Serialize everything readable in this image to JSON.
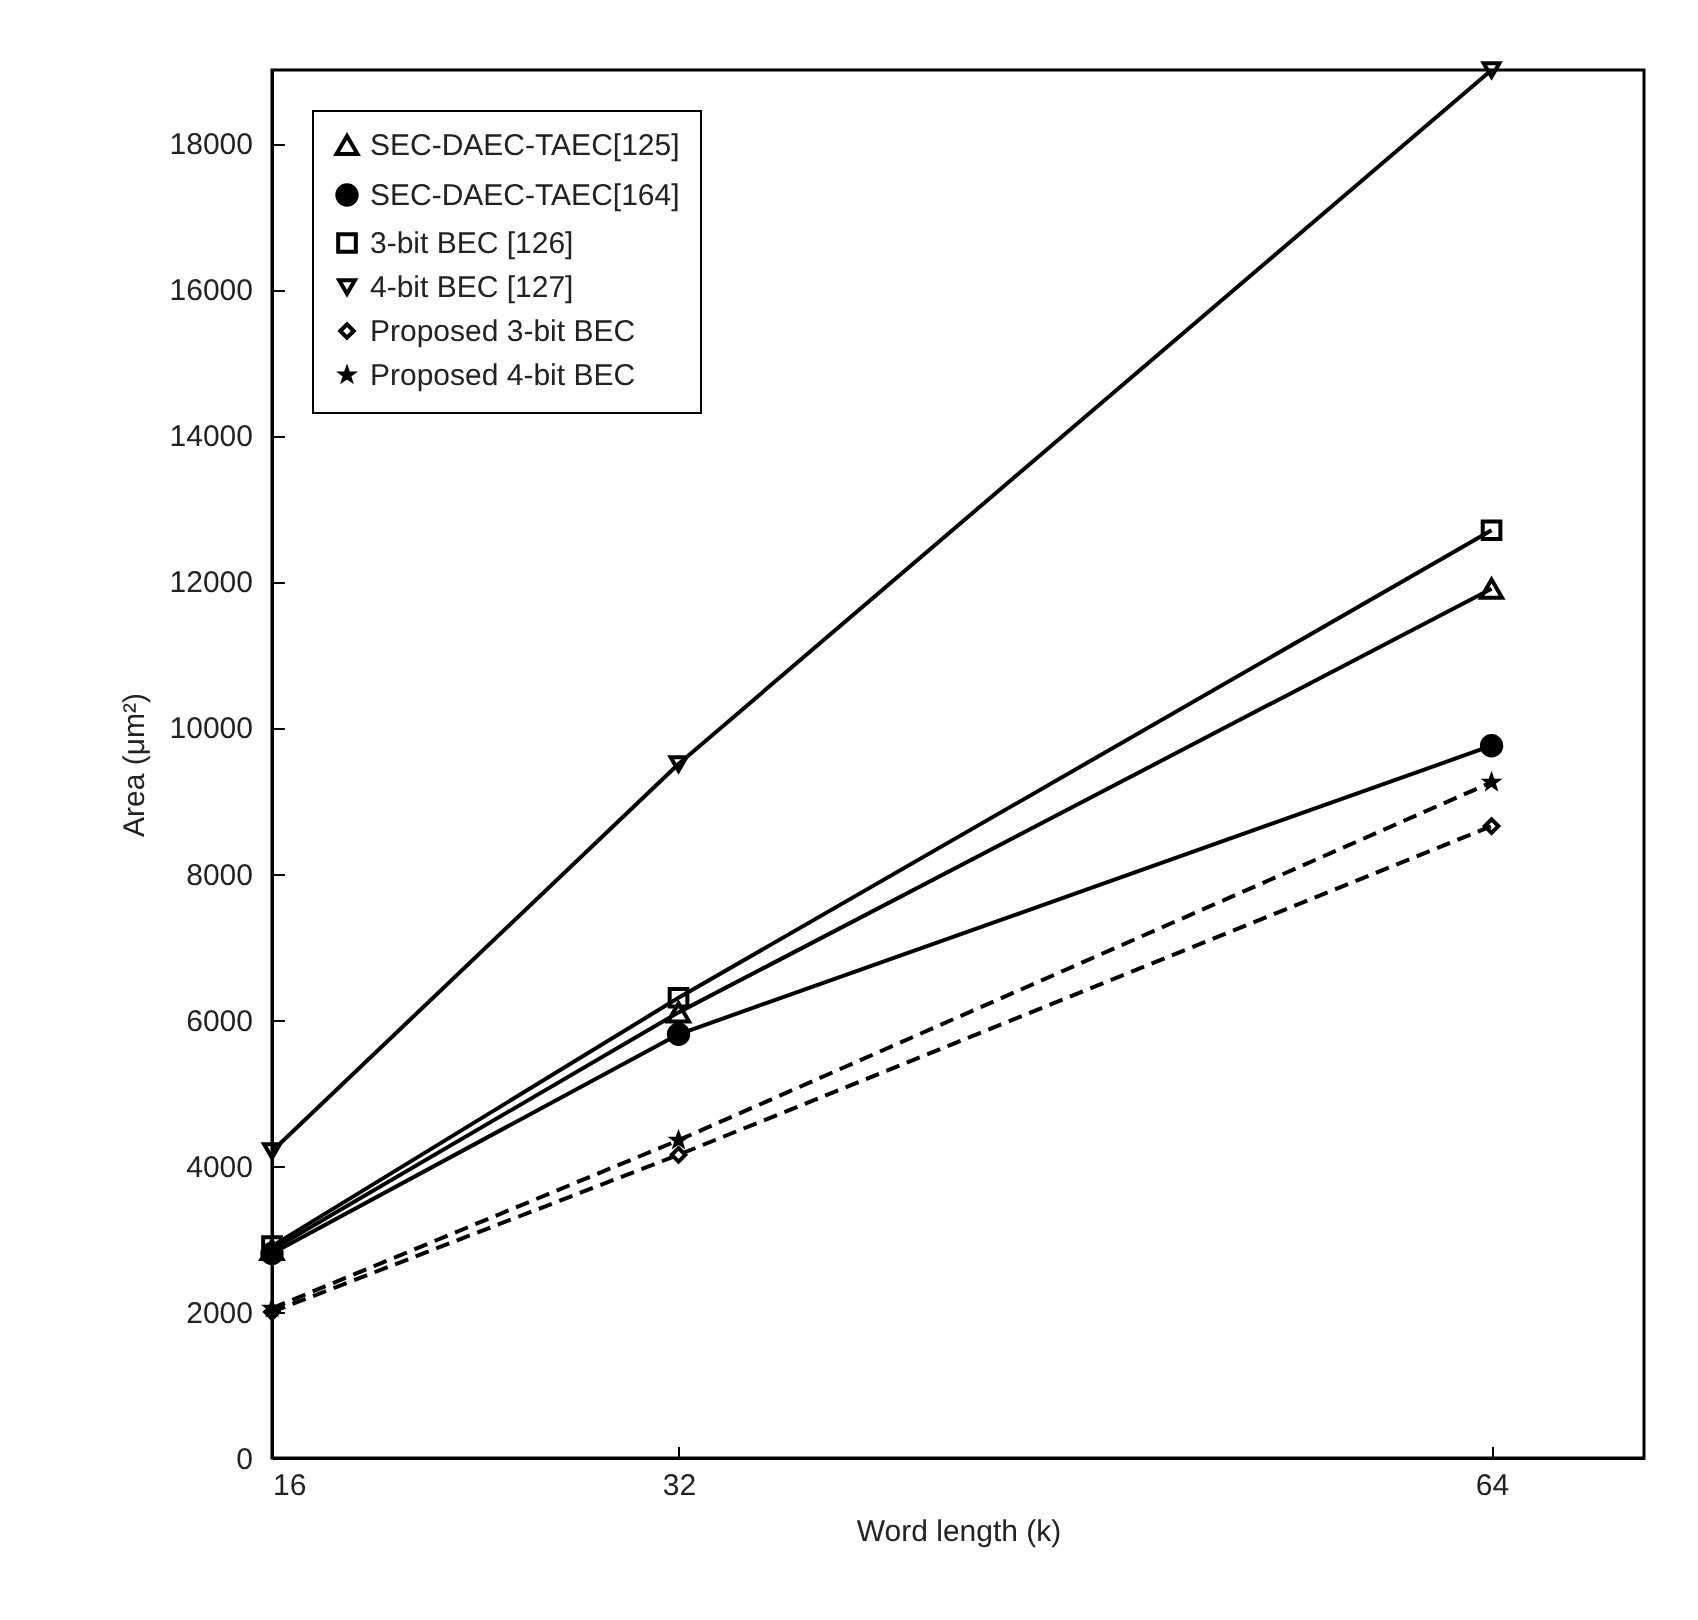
{
  "chart_data": {
    "type": "line",
    "xlabel": "Word length (k)",
    "ylabel": "Area (μm²)",
    "x": [
      16,
      32,
      64
    ],
    "xlim": [
      16,
      70
    ],
    "xticks": [
      16,
      32,
      64
    ],
    "ylim": [
      0,
      19000
    ],
    "yticks": [
      0,
      2000,
      4000,
      6000,
      8000,
      10000,
      12000,
      14000,
      16000,
      18000
    ],
    "grid": false,
    "legend": "top left",
    "series": [
      {
        "name": "SEC-DAEC-TAEC[125]",
        "color": "#000000",
        "marker": "triangle",
        "line_style": "solid",
        "values": [
          2850,
          6100,
          11900
        ]
      },
      {
        "name": "SEC-DAEC-TAEC[164]",
        "color": "#000000",
        "marker": "circle",
        "line_style": "solid",
        "values": [
          2800,
          5800,
          9750
        ]
      },
      {
        "name": "3-bit BEC  [126]",
        "color": "#000000",
        "marker": "square",
        "line_style": "solid",
        "values": [
          2900,
          6300,
          12700
        ]
      },
      {
        "name": "4-bit BEC  [127]",
        "color": "#000000",
        "marker": "triangle-down",
        "line_style": "solid",
        "values": [
          4200,
          9500,
          19000
        ]
      },
      {
        "name": "Proposed 3-bit BEC",
        "color": "#000000",
        "marker": "diamond",
        "line_style": "dashed",
        "values": [
          2000,
          4150,
          8650
        ]
      },
      {
        "name": "Proposed 4-bit BEC",
        "color": "#000000",
        "marker": "star",
        "line_style": "dashed",
        "values": [
          2050,
          4350,
          9250
        ]
      }
    ]
  }
}
